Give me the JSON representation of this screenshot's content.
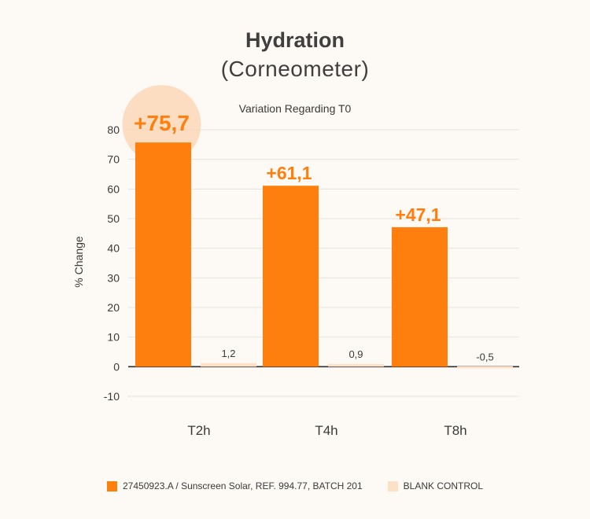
{
  "chart_data": {
    "type": "bar",
    "title": "Hydration",
    "subtitle": "(Corneometer)",
    "annotation": "Variation Regarding T0",
    "xlabel": "",
    "ylabel": "% Change",
    "ylim": [
      -10,
      80
    ],
    "yticks": [
      80,
      70,
      60,
      50,
      40,
      30,
      20,
      10,
      0,
      -10
    ],
    "categories": [
      "T2h",
      "T4h",
      "T8h"
    ],
    "grid": true,
    "legend_position": "bottom-center",
    "series": [
      {
        "name": "27450923.A / Sunscreen Solar, REF. 994.77, BATCH 201",
        "color": "#ff7f0e",
        "values": [
          75.7,
          61.1,
          47.1
        ],
        "labels": [
          "+75,7",
          "+61,1",
          "+47,1"
        ]
      },
      {
        "name": "BLANK CONTROL",
        "color": "#fde0c6",
        "values": [
          1.2,
          0.9,
          -0.5
        ],
        "labels": [
          "1,2",
          "0,9",
          "-0,5"
        ]
      }
    ]
  }
}
